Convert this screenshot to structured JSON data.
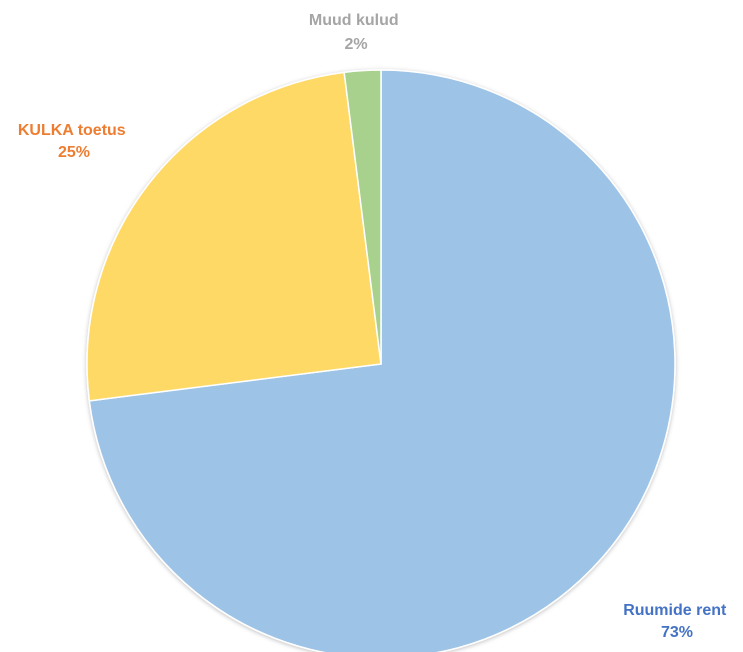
{
  "chart_data": {
    "type": "pie",
    "title": "",
    "start_angle_deg": 0,
    "direction": "clockwise",
    "slices": [
      {
        "label": "Ruumide rent",
        "value": 73,
        "value_label": "73%",
        "color": "#9DC3E6",
        "label_color": "#4472C4"
      },
      {
        "label": "KULKA toetus",
        "value": 25,
        "value_label": "25%",
        "color": "#FFD966",
        "label_color": "#ED7D31"
      },
      {
        "label": "Muud kulud",
        "value": 2,
        "value_label": "2%",
        "color": "#A9D18E",
        "label_color": "#A5A5A5"
      }
    ]
  }
}
